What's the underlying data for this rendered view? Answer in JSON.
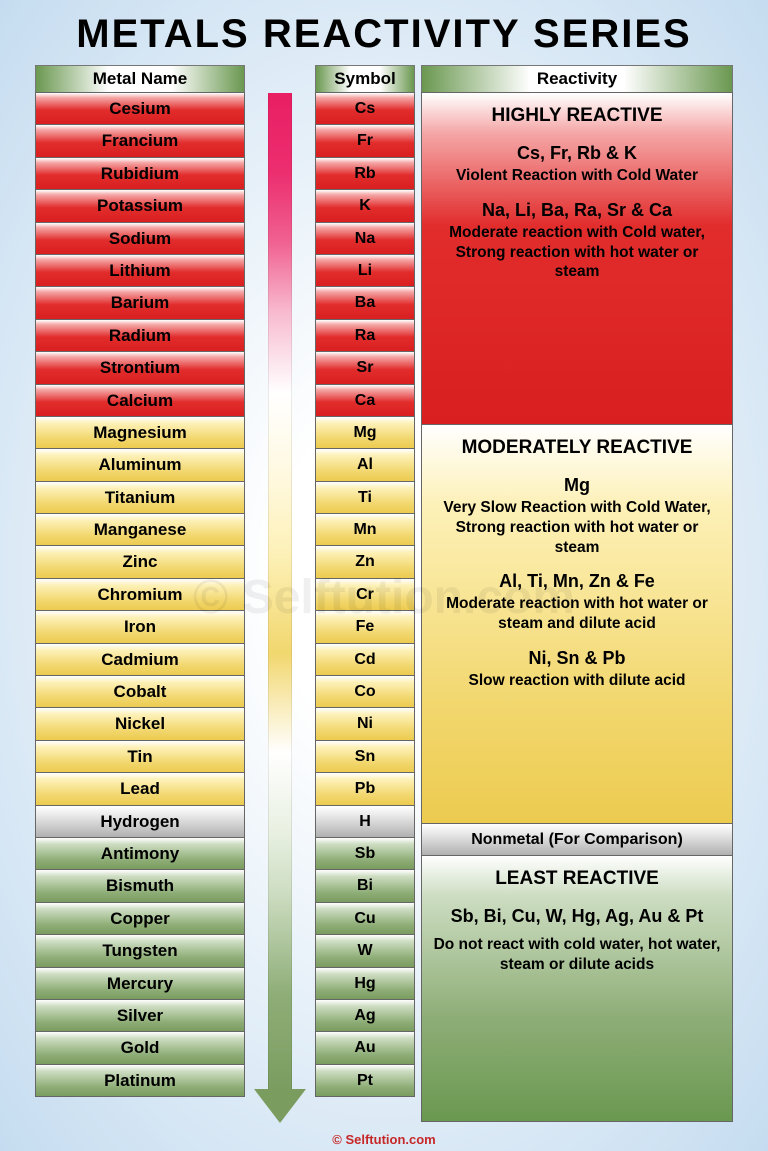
{
  "title": "METALS REACTIVITY SERIES",
  "headers": {
    "name": "Metal Name",
    "symbol": "Symbol",
    "reactivity": "Reactivity"
  },
  "watermark": "© Selftution.com",
  "footer": "© Selftution.com",
  "colors": {
    "red_top": "#ffffff",
    "red_bot": "#d91f1f",
    "yellow_top": "#ffffff",
    "yellow_bot": "#eccb4f",
    "gray_top": "#ffffff",
    "gray_bot": "#b0b0b0",
    "green_top": "#ffffff",
    "green_bot": "#7a9c5f",
    "arrow_pink": "#e91e63",
    "arrow_green": "#7a9c5f",
    "background_outer": "#c5dcf0",
    "background_inner": "#ffffff",
    "header_green": "#6a9850"
  },
  "fonts": {
    "title_size": 40,
    "header_size": 17,
    "cell_size": 17,
    "desc_size": 15.5
  },
  "metals": [
    {
      "name": "Cesium",
      "symbol": "Cs",
      "group": "high"
    },
    {
      "name": "Francium",
      "symbol": "Fr",
      "group": "high"
    },
    {
      "name": "Rubidium",
      "symbol": "Rb",
      "group": "high"
    },
    {
      "name": "Potassium",
      "symbol": "K",
      "group": "high"
    },
    {
      "name": "Sodium",
      "symbol": "Na",
      "group": "high"
    },
    {
      "name": "Lithium",
      "symbol": "Li",
      "group": "high"
    },
    {
      "name": "Barium",
      "symbol": "Ba",
      "group": "high"
    },
    {
      "name": "Radium",
      "symbol": "Ra",
      "group": "high"
    },
    {
      "name": "Strontium",
      "symbol": "Sr",
      "group": "high"
    },
    {
      "name": "Calcium",
      "symbol": "Ca",
      "group": "high"
    },
    {
      "name": "Magnesium",
      "symbol": "Mg",
      "group": "mod"
    },
    {
      "name": "Aluminum",
      "symbol": "Al",
      "group": "mod"
    },
    {
      "name": "Titanium",
      "symbol": "Ti",
      "group": "mod"
    },
    {
      "name": "Manganese",
      "symbol": "Mn",
      "group": "mod"
    },
    {
      "name": "Zinc",
      "symbol": "Zn",
      "group": "mod"
    },
    {
      "name": "Chromium",
      "symbol": "Cr",
      "group": "mod"
    },
    {
      "name": "Iron",
      "symbol": "Fe",
      "group": "mod"
    },
    {
      "name": "Cadmium",
      "symbol": "Cd",
      "group": "mod"
    },
    {
      "name": "Cobalt",
      "symbol": "Co",
      "group": "mod"
    },
    {
      "name": "Nickel",
      "symbol": "Ni",
      "group": "mod"
    },
    {
      "name": "Tin",
      "symbol": "Sn",
      "group": "mod"
    },
    {
      "name": "Lead",
      "symbol": "Pb",
      "group": "mod"
    },
    {
      "name": "Hydrogen",
      "symbol": "H",
      "group": "nonmetal"
    },
    {
      "name": "Antimony",
      "symbol": "Sb",
      "group": "least"
    },
    {
      "name": "Bismuth",
      "symbol": "Bi",
      "group": "least"
    },
    {
      "name": "Copper",
      "symbol": "Cu",
      "group": "least"
    },
    {
      "name": "Tungsten",
      "symbol": "W",
      "group": "least"
    },
    {
      "name": "Mercury",
      "symbol": "Hg",
      "group": "least"
    },
    {
      "name": "Silver",
      "symbol": "Ag",
      "group": "least"
    },
    {
      "name": "Gold",
      "symbol": "Au",
      "group": "least"
    },
    {
      "name": "Platinum",
      "symbol": "Pt",
      "group": "least"
    }
  ],
  "reactivity": {
    "high": {
      "heading": "HIGHLY REACTIVE",
      "groups": [
        {
          "els": "Cs, Fr, Rb & K",
          "desc": "Violent Reaction with Cold Water"
        },
        {
          "els": "Na, Li, Ba, Ra, Sr & Ca",
          "desc": "Moderate reaction with Cold water, Strong reaction with hot water or steam"
        }
      ]
    },
    "mod": {
      "heading": "MODERATELY REACTIVE",
      "groups": [
        {
          "els": "Mg",
          "desc": "Very Slow Reaction with Cold Water, Strong reaction with hot water or steam"
        },
        {
          "els": "Al, Ti, Mn, Zn & Fe",
          "desc": "Moderate reaction with hot water or steam and dilute acid"
        },
        {
          "els": "Ni, Sn & Pb",
          "desc": "Slow reaction with dilute acid"
        }
      ]
    },
    "nonmetal": {
      "label": "Nonmetal (For Comparison)"
    },
    "least": {
      "heading": "LEAST REACTIVE",
      "groups": [
        {
          "els": "Sb, Bi, Cu, W, Hg, Ag, Au & Pt",
          "desc": "Do not react with cold water, hot water, steam or dilute acids"
        }
      ]
    }
  }
}
